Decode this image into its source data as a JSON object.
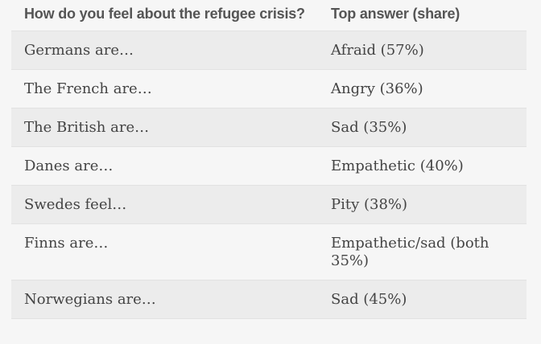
{
  "table": {
    "headers": [
      "How do you feel about the refugee crisis?",
      "Top answer (share)"
    ],
    "rows": [
      [
        "Germans are…",
        "Afraid (57%)"
      ],
      [
        "The French are…",
        "Angry (36%)"
      ],
      [
        "The British are…",
        "Sad (35%)"
      ],
      [
        "Danes are…",
        "Empathetic (40%)"
      ],
      [
        "Swedes feel…",
        "Pity (38%)"
      ],
      [
        "Finns are…",
        "Empathetic/sad (both 35%)"
      ],
      [
        "Norwegians are…",
        "Sad (45%)"
      ]
    ]
  },
  "colors": {
    "background": "#f6f6f6",
    "row_shade": "#ececec",
    "header_text": "#555555",
    "body_text": "#444444"
  }
}
